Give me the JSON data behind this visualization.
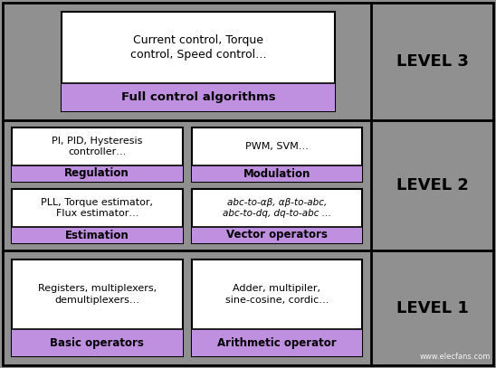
{
  "bg_color": "#909090",
  "white": "#ffffff",
  "purple": "#c090e0",
  "black": "#000000",
  "fig_w": 5.48,
  "fig_h": 4.07,
  "dpi": 100,
  "levels": [
    "LEVEL 3",
    "LEVEL 2",
    "LEVEL 1"
  ],
  "level3": {
    "top_text": "Current control, Torque\ncontrol, Speed control…",
    "bottom_text": "Full control algorithms"
  },
  "level2_upper": {
    "left_top": "PI, PID, Hysteresis\ncontroller…",
    "left_bot": "Regulation",
    "right_top": "PWM, SVM…",
    "right_bot": "Modulation"
  },
  "level2_lower": {
    "left_top": "PLL, Torque estimator,\nFlux estimator…",
    "left_bot": "Estimation",
    "right_top": "abc-to-αβ, αβ-to-abc,\nabc-to-dq, dq-to-abc …",
    "right_bot": "Vector operators"
  },
  "level1": {
    "left_top": "Registers, multiplexers,\ndemultiplexers…",
    "left_bot": "Basic operators",
    "right_top": "Adder, multipiler,\nsine-cosine, cordic…",
    "right_bot": "Arithmetic operator"
  },
  "watermark": "www.elecfans.com"
}
